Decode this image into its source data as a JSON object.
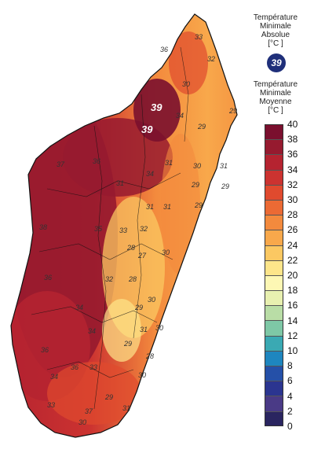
{
  "legend": {
    "absolute_title": [
      "Température",
      "Minimale",
      "Absolue",
      "[°C ]"
    ],
    "absolute_value": "39",
    "mean_title": [
      "Température",
      "Minimale",
      "Moyenne",
      "[°C ]"
    ],
    "scale": {
      "ticks": [
        "40",
        "38",
        "36",
        "34",
        "32",
        "30",
        "28",
        "26",
        "24",
        "22",
        "20",
        "18",
        "16",
        "14",
        "12",
        "10",
        "8",
        "6",
        "4",
        "2",
        "0"
      ],
      "colors": [
        "#7a0f2e",
        "#961a2f",
        "#b52330",
        "#cc3330",
        "#e04a2e",
        "#eb6a34",
        "#f38a3d",
        "#f8a84b",
        "#fbc862",
        "#fde58a",
        "#fdf7b4",
        "#e8f0b0",
        "#b9dda6",
        "#7ec8a6",
        "#3aa9b3",
        "#1e86bf",
        "#2550a8",
        "#2b3590",
        "#4a3a86",
        "#2a2560"
      ]
    },
    "colors": {
      "badge": "#1f2f7a"
    }
  },
  "map": {
    "region": "Madagascar",
    "absolute_max_labels": [
      "39",
      "39"
    ],
    "value_labels": [
      "33",
      "36",
      "32",
      "30",
      "29",
      "34",
      "29",
      "31",
      "30",
      "31",
      "29",
      "29",
      "37",
      "36",
      "34",
      "31",
      "31",
      "31",
      "29",
      "38",
      "35",
      "33",
      "32",
      "28",
      "27",
      "30",
      "36",
      "32",
      "28",
      "34",
      "29",
      "30",
      "31",
      "30",
      "36",
      "34",
      "29",
      "33",
      "28",
      "34",
      "30",
      "31",
      "29",
      "33",
      "30",
      "37",
      "36"
    ]
  }
}
